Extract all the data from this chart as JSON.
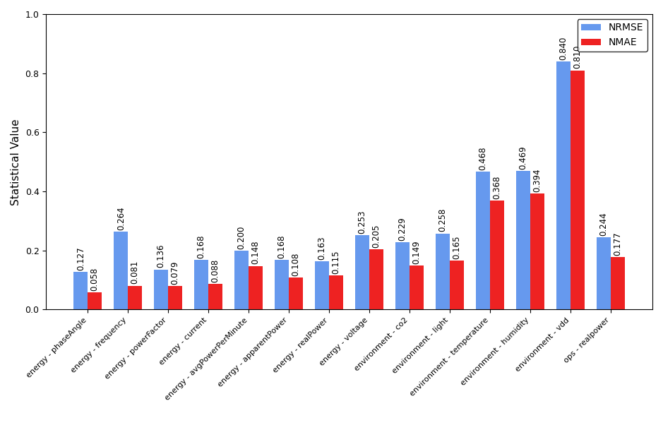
{
  "categories": [
    "energy - phaseAngle",
    "energy - frequency",
    "energy - powerFactor",
    "energy - current",
    "energy - avgPowerPerMinute",
    "energy - apparentPower",
    "energy - realPower",
    "energy - voltage",
    "environment - co2",
    "environment - light",
    "environment - temperature",
    "environment - humidity",
    "environment - vdd",
    "ops - realpower"
  ],
  "nrmse": [
    0.127,
    0.264,
    0.136,
    0.168,
    0.2,
    0.168,
    0.163,
    0.253,
    0.229,
    0.258,
    0.468,
    0.469,
    0.84,
    0.244
  ],
  "nmae": [
    0.058,
    0.081,
    0.079,
    0.088,
    0.148,
    0.108,
    0.115,
    0.205,
    0.149,
    0.165,
    0.368,
    0.394,
    0.81,
    0.177
  ],
  "nrmse_color": "#6699ee",
  "nmae_color": "#ee2222",
  "ylabel": "Statistical Value",
  "ylim": [
    0.0,
    1.0
  ],
  "bar_width": 0.35,
  "label_fontsize": 8.5,
  "tick_fontsize": 9,
  "xtick_fontsize": 8,
  "legend_labels": [
    "NRMSE",
    "NMAE"
  ],
  "legend_fontsize": 10
}
